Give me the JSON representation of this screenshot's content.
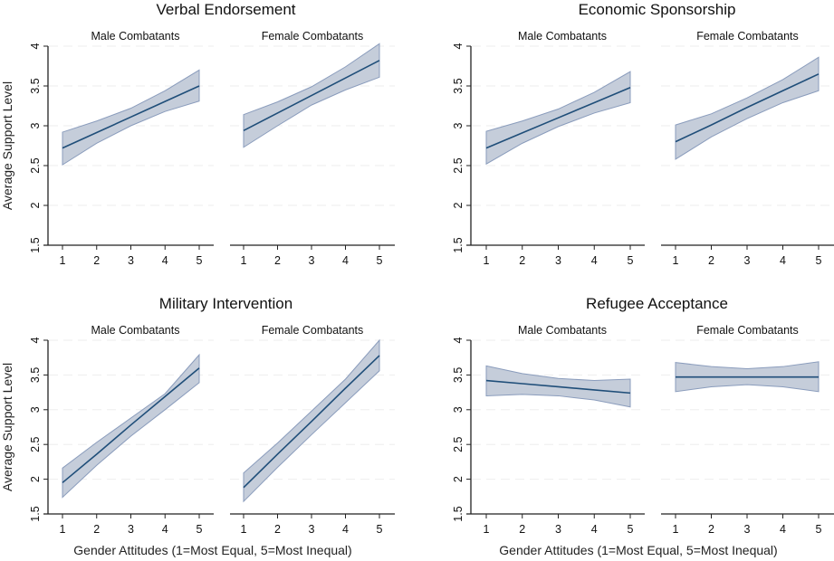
{
  "chart_data": [
    {
      "type": "line",
      "title": "Verbal Endorsement",
      "ylabel": "Average Support Level",
      "xlabel": "",
      "ylim": [
        1.5,
        4
      ],
      "yticks": [
        "1.5",
        "2",
        "2.5",
        "3",
        "3.5",
        "4"
      ],
      "xticks": [
        "1",
        "2",
        "3",
        "4",
        "5"
      ],
      "grid": true,
      "facets": [
        {
          "label": "Male Combatants",
          "x": [
            1,
            2,
            3,
            4,
            5
          ],
          "fit": [
            2.72,
            2.915,
            3.11,
            3.305,
            3.5
          ],
          "lower": [
            2.51,
            2.78,
            3.0,
            3.18,
            3.31
          ],
          "upper": [
            2.92,
            3.06,
            3.22,
            3.44,
            3.7
          ]
        },
        {
          "label": "Female Combatants",
          "x": [
            1,
            2,
            3,
            4,
            5
          ],
          "fit": [
            2.94,
            3.16,
            3.38,
            3.6,
            3.82
          ],
          "lower": [
            2.73,
            3.0,
            3.26,
            3.45,
            3.61
          ],
          "upper": [
            3.14,
            3.3,
            3.49,
            3.74,
            4.03
          ]
        }
      ]
    },
    {
      "type": "line",
      "title": "Economic Sponsorship",
      "ylabel": "",
      "xlabel": "",
      "ylim": [
        1.5,
        4
      ],
      "yticks": [
        "1.5",
        "2",
        "2.5",
        "3",
        "3.5",
        "4"
      ],
      "xticks": [
        "1",
        "2",
        "3",
        "4",
        "5"
      ],
      "grid": true,
      "facets": [
        {
          "label": "Male Combatants",
          "x": [
            1,
            2,
            3,
            4,
            5
          ],
          "fit": [
            2.72,
            2.91,
            3.1,
            3.29,
            3.48
          ],
          "lower": [
            2.52,
            2.78,
            2.99,
            3.16,
            3.29
          ],
          "upper": [
            2.93,
            3.06,
            3.21,
            3.42,
            3.68
          ]
        },
        {
          "label": "Female Combatants",
          "x": [
            1,
            2,
            3,
            4,
            5
          ],
          "fit": [
            2.8,
            3.01,
            3.23,
            3.44,
            3.65
          ],
          "lower": [
            2.58,
            2.86,
            3.09,
            3.29,
            3.44
          ],
          "upper": [
            3.01,
            3.15,
            3.35,
            3.58,
            3.86
          ]
        }
      ]
    },
    {
      "type": "line",
      "title": "Military Intervention",
      "ylabel": "Average Support Level",
      "xlabel": "Gender Attitudes (1=Most Equal, 5=Most Inequal)",
      "ylim": [
        1.5,
        4
      ],
      "yticks": [
        "1.5",
        "2",
        "2.5",
        "3",
        "3.5",
        "4"
      ],
      "xticks": [
        "1",
        "2",
        "3",
        "4",
        "5"
      ],
      "grid": true,
      "facets": [
        {
          "label": "Male Combatants",
          "x": [
            1,
            2,
            3,
            4,
            5
          ],
          "fit": [
            1.95,
            2.36,
            2.78,
            3.19,
            3.6
          ],
          "lower": [
            1.74,
            2.2,
            2.62,
            3.0,
            3.39
          ],
          "upper": [
            2.16,
            2.53,
            2.88,
            3.23,
            3.79
          ]
        },
        {
          "label": "Female Combatants",
          "x": [
            1,
            2,
            3,
            4,
            5
          ],
          "fit": [
            1.88,
            2.36,
            2.83,
            3.31,
            3.78
          ],
          "lower": [
            1.68,
            2.17,
            2.64,
            3.1,
            3.56
          ],
          "upper": [
            2.09,
            2.52,
            2.98,
            3.44,
            4.0
          ]
        }
      ]
    },
    {
      "type": "line",
      "title": "Refugee Acceptance",
      "ylabel": "",
      "xlabel": "Gender Attitudes (1=Most Equal, 5=Most Inequal)",
      "ylim": [
        1.5,
        4
      ],
      "yticks": [
        "1.5",
        "2",
        "2.5",
        "3",
        "3.5",
        "4"
      ],
      "xticks": [
        "1",
        "2",
        "3",
        "4",
        "5"
      ],
      "grid": true,
      "facets": [
        {
          "label": "Male Combatants",
          "x": [
            1,
            2,
            3,
            4,
            5
          ],
          "fit": [
            3.42,
            3.375,
            3.33,
            3.285,
            3.24
          ],
          "lower": [
            3.2,
            3.22,
            3.2,
            3.14,
            3.04
          ],
          "upper": [
            3.63,
            3.52,
            3.45,
            3.42,
            3.44
          ]
        },
        {
          "label": "Female Combatants",
          "x": [
            1,
            2,
            3,
            4,
            5
          ],
          "fit": [
            3.47,
            3.47,
            3.47,
            3.47,
            3.47
          ],
          "lower": [
            3.26,
            3.33,
            3.36,
            3.33,
            3.26
          ],
          "upper": [
            3.68,
            3.62,
            3.59,
            3.62,
            3.69
          ]
        }
      ]
    }
  ],
  "colors": {
    "line": "#1f4e79",
    "band": "#c5cdda",
    "band_edge": "#8a9cbc",
    "axis": "#222222",
    "grid": "#eeeeee"
  }
}
